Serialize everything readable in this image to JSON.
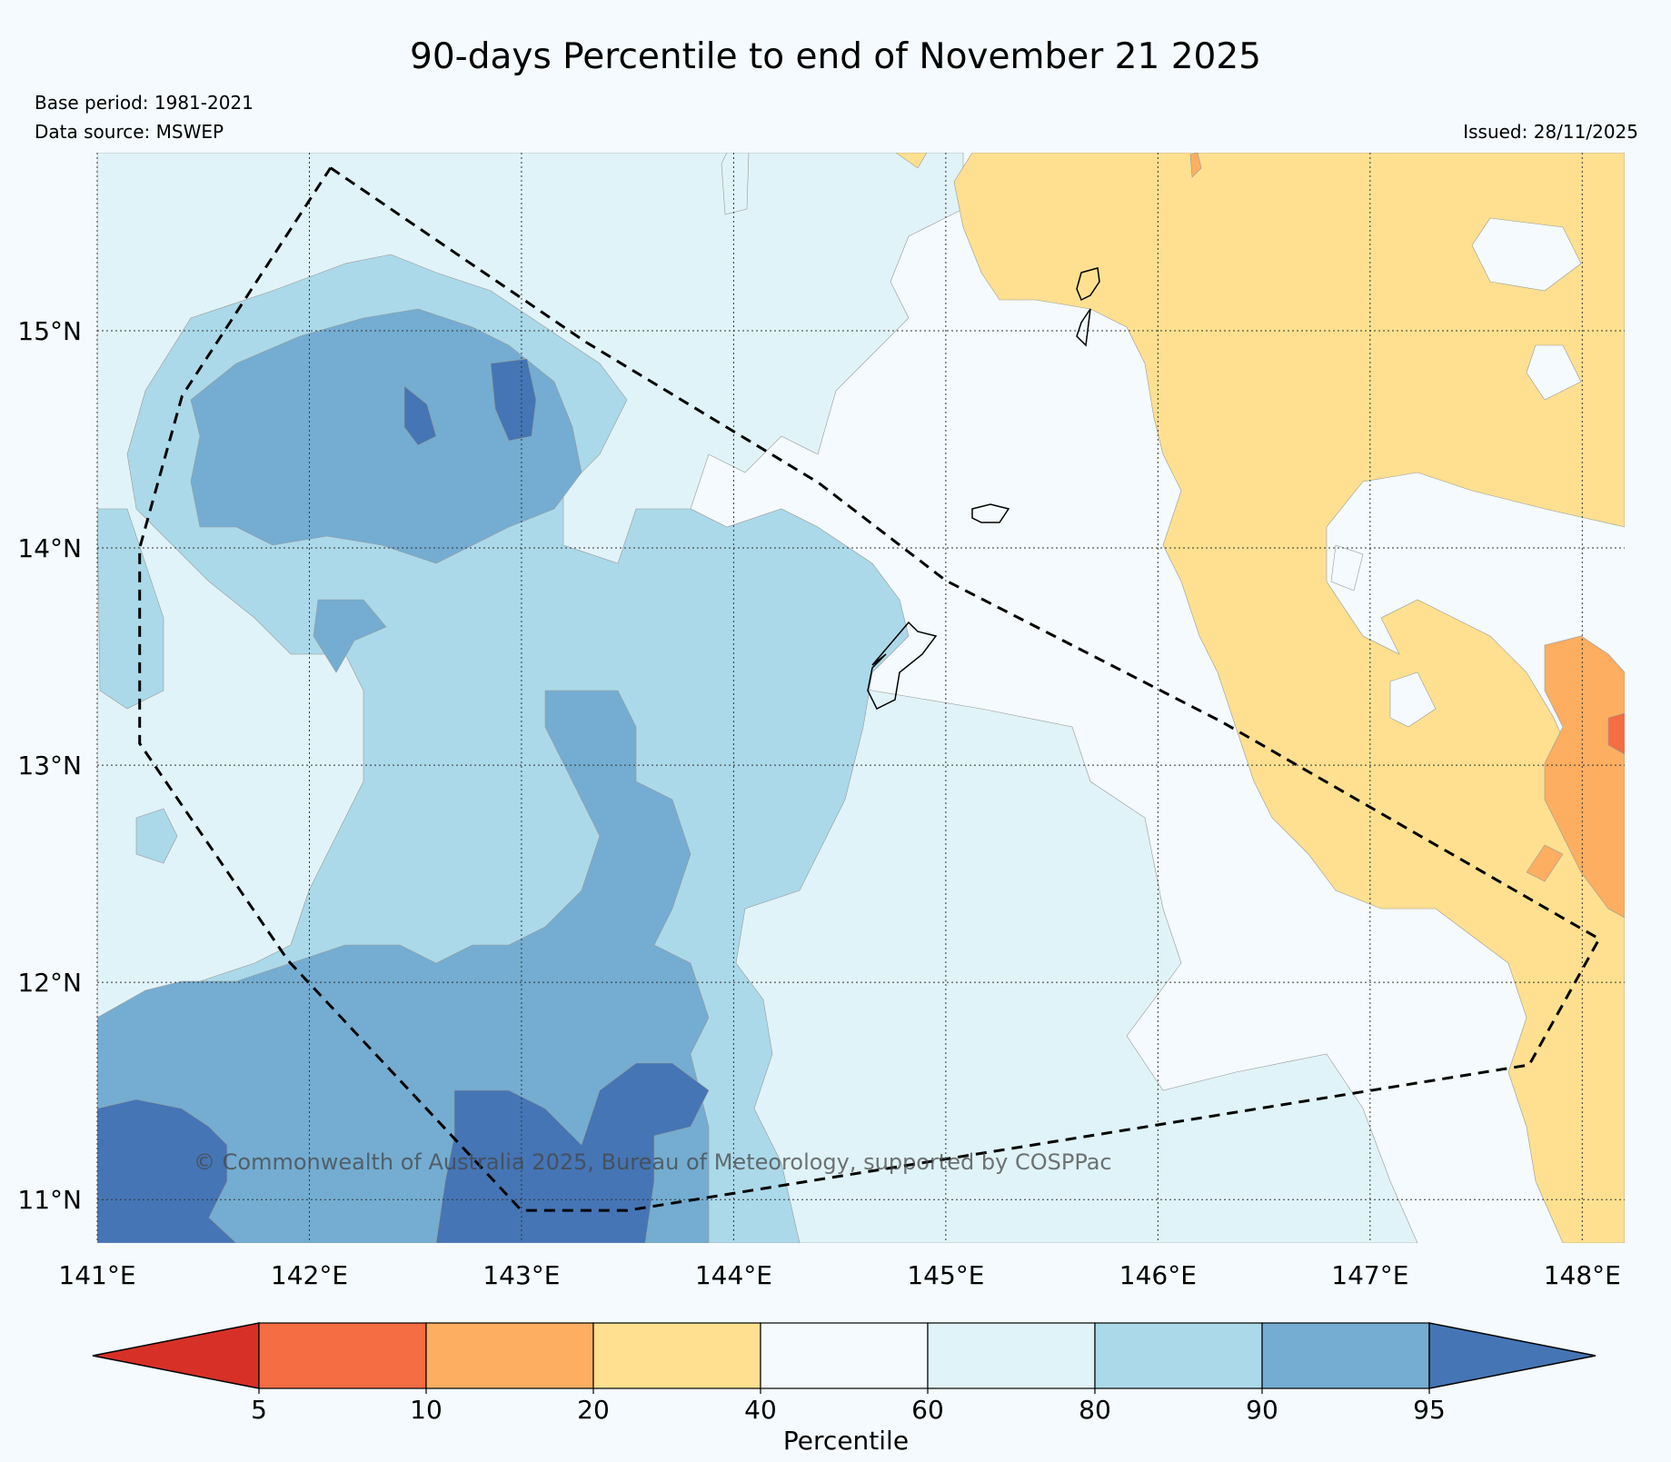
{
  "title": "90-days Percentile to end of November 21 2025",
  "base_period": "Base period: 1981-2021",
  "data_source": "Data source: MSWEP",
  "issued": "Issued: 28/11/2025",
  "copyright": "© Commonwealth of Australia 2025, Bureau of Meteorology, supported by COSPPac",
  "map": {
    "lon_range": [
      141.0,
      148.2
    ],
    "lat_range": [
      10.8,
      15.82
    ],
    "lon_ticks": [
      141,
      142,
      143,
      144,
      145,
      146,
      147,
      148
    ],
    "lon_labels": [
      "141°E",
      "142°E",
      "143°E",
      "144°E",
      "145°E",
      "146°E",
      "147°E",
      "148°E"
    ],
    "lat_ticks": [
      11,
      12,
      13,
      14,
      15
    ],
    "lat_labels": [
      "11°N",
      "12°N",
      "13°N",
      "14°N",
      "15°N"
    ],
    "region_outline": [
      [
        142.1,
        15.75
      ],
      [
        143.3,
        14.95
      ],
      [
        144.4,
        14.3
      ],
      [
        145.0,
        13.85
      ],
      [
        146.3,
        13.2
      ],
      [
        148.08,
        12.2
      ],
      [
        147.75,
        11.62
      ],
      [
        143.5,
        10.95
      ],
      [
        143.0,
        10.95
      ],
      [
        141.9,
        12.1
      ],
      [
        141.2,
        13.1
      ],
      [
        141.2,
        14.0
      ],
      [
        141.4,
        14.7
      ],
      [
        142.1,
        15.75
      ]
    ]
  },
  "colors": {
    "p0_5": "#d73027",
    "p5_10": "#f46d43",
    "p10_20": "#fdae61",
    "p20_40": "#fee090",
    "p40_60": "#f4fafd",
    "p60_80": "#e0f3f8",
    "p80_90": "#abd9e9",
    "p90_95": "#74add1",
    "p95_100": "#4575b4"
  },
  "colorbar": {
    "label": "Percentile",
    "ticks": [
      "5",
      "10",
      "20",
      "40",
      "60",
      "80",
      "90",
      "95"
    ],
    "segments": [
      "#f46d43",
      "#fdae61",
      "#fee090",
      "#f4fafd",
      "#e0f3f8",
      "#abd9e9",
      "#74add1"
    ],
    "low_extend_color": "#d73027",
    "high_extend_color": "#4575b4"
  }
}
